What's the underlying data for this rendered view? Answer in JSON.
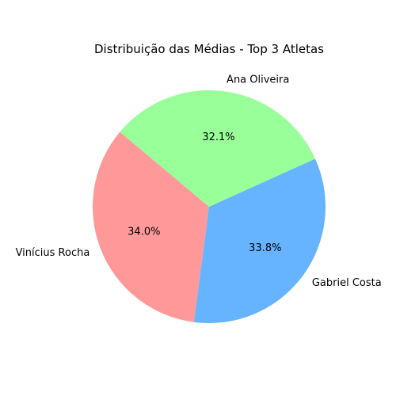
{
  "chart_data": {
    "type": "pie",
    "title": "Distribuição das Médias - Top 3 Atletas",
    "slices": [
      {
        "label": "Vinícius Rocha",
        "value": 34.0,
        "pct_label": "34.0%",
        "color": "#ff9999"
      },
      {
        "label": "Gabriel Costa",
        "value": 33.8,
        "pct_label": "33.8%",
        "color": "#66b3ff"
      },
      {
        "label": "Ana Oliveira",
        "value": 32.1,
        "pct_label": "32.1%",
        "color": "#99ff99"
      }
    ],
    "start_angle_deg": 140,
    "direction": "counterclockwise"
  }
}
